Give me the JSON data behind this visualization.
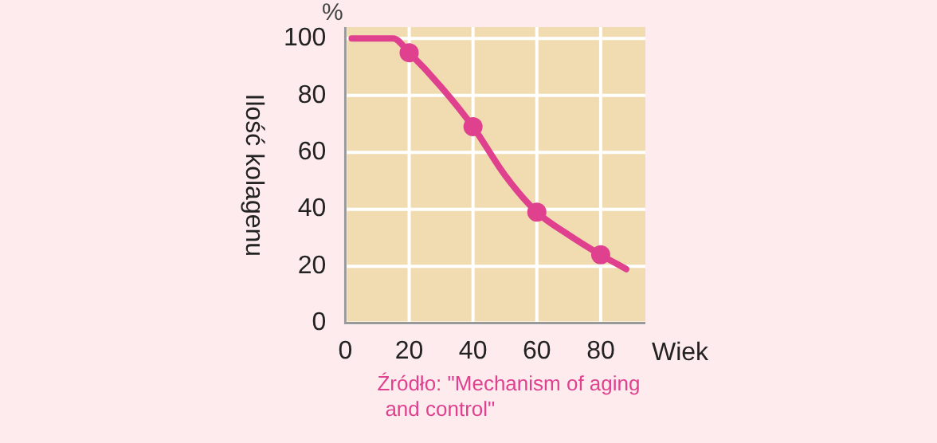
{
  "chart_data": {
    "type": "line",
    "xlabel": "Wiek",
    "ylabel": "Ilość kolagenu",
    "annotations": [
      "%",
      "Źródło: \"Mechanism of aging and control\""
    ],
    "series": [
      {
        "color": "#e0418f",
        "marker": "none",
        "x": [
          2,
          15,
          20,
          30,
          40,
          50,
          60,
          70,
          80,
          88
        ],
        "values": [
          100,
          100,
          95,
          83,
          69,
          52,
          39,
          31,
          24,
          19
        ]
      },
      {
        "type": "scatter",
        "color": "#e0418f",
        "marker": "circle",
        "x": [
          20,
          40,
          60,
          80
        ],
        "values": [
          95,
          69,
          39,
          24
        ]
      }
    ],
    "xlim": [
      0,
      94
    ],
    "xticks": [
      0,
      20,
      40,
      60,
      80
    ],
    "ylim": [
      0,
      104
    ],
    "yticks": [
      0,
      20,
      40,
      60,
      80,
      100
    ],
    "grid": true
  }
}
